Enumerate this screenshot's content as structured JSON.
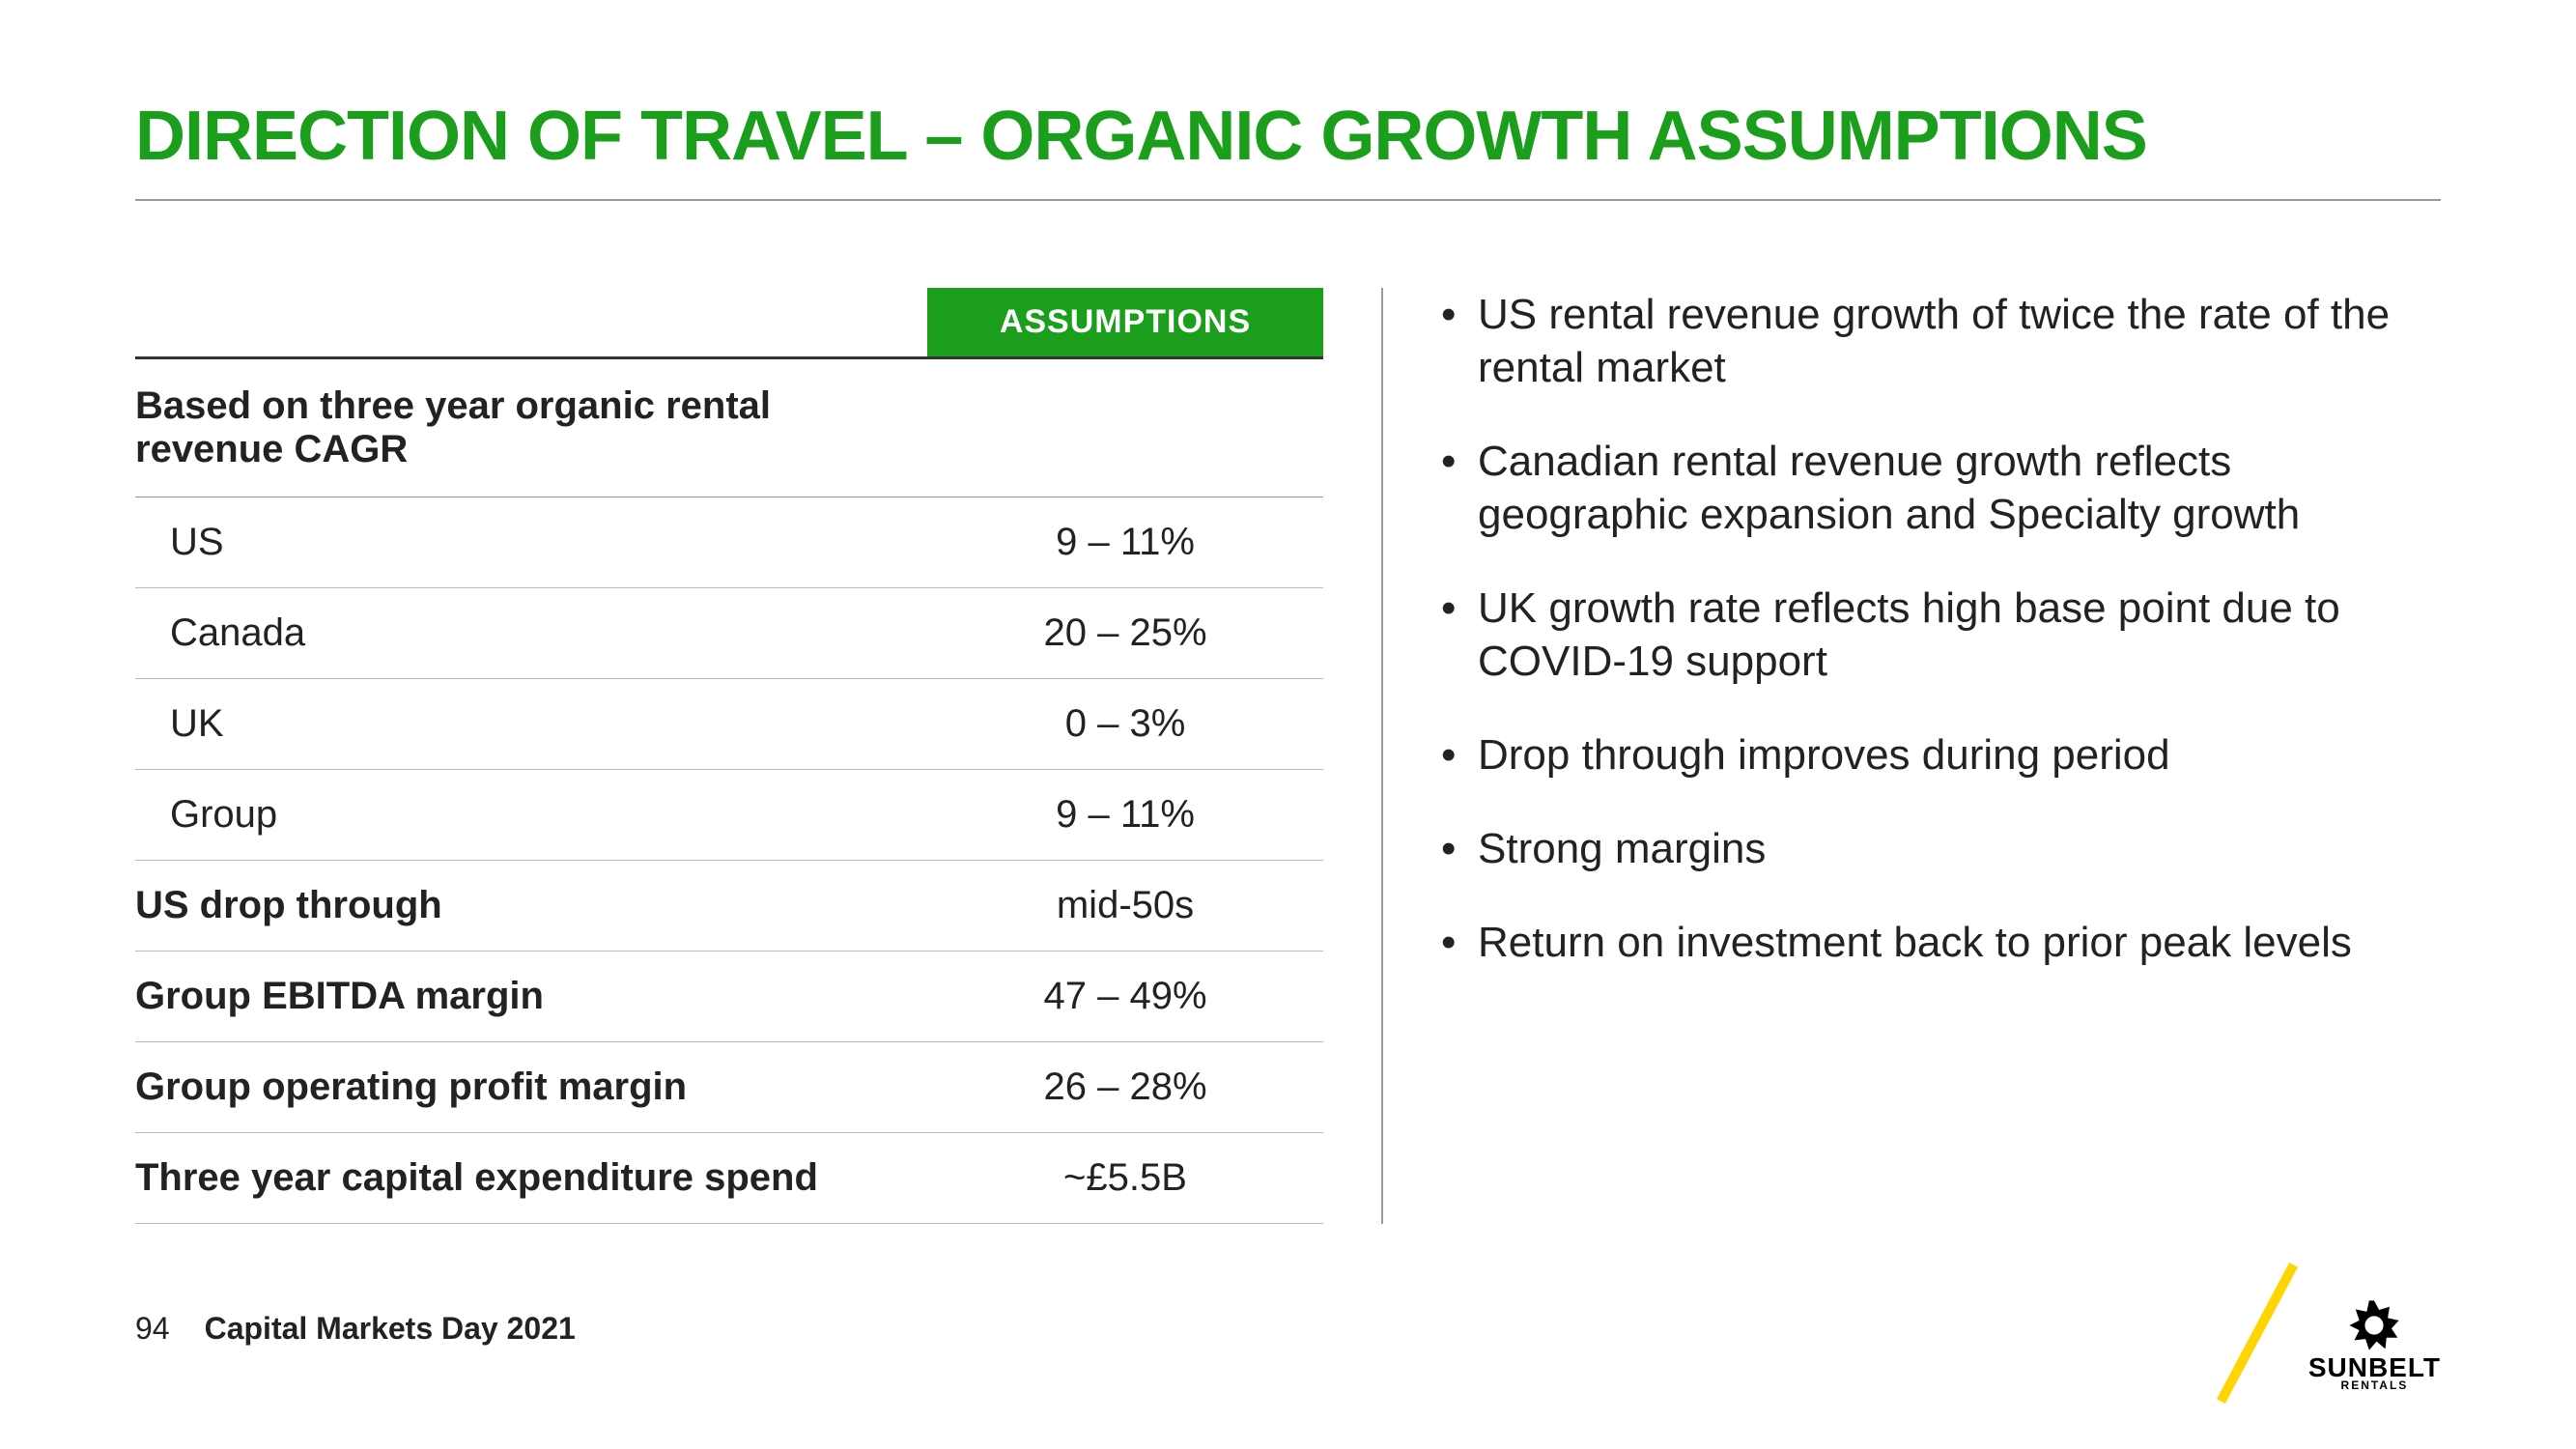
{
  "title": "DIRECTION OF TRAVEL – ORGANIC GROWTH ASSUMPTIONS",
  "colors": {
    "brand_green": "#1b9e1b",
    "accent_yellow": "#ffd400",
    "rule_gray": "#999999",
    "text": "#222222",
    "background": "#ffffff"
  },
  "table": {
    "header_badge": "ASSUMPTIONS",
    "section_header": "Based on three year organic rental revenue CAGR",
    "rows": [
      {
        "label": "US",
        "value": "9 – 11%",
        "indented": true,
        "bold": false
      },
      {
        "label": "Canada",
        "value": "20 – 25%",
        "indented": true,
        "bold": false
      },
      {
        "label": "UK",
        "value": "0 – 3%",
        "indented": true,
        "bold": false
      },
      {
        "label": "Group",
        "value": "9 – 11%",
        "indented": true,
        "bold": false
      },
      {
        "label": "US drop through",
        "value": "mid-50s",
        "indented": false,
        "bold": true
      },
      {
        "label": "Group EBITDA margin",
        "value": "47 – 49%",
        "indented": false,
        "bold": true
      },
      {
        "label": "Group operating profit margin",
        "value": "26 – 28%",
        "indented": false,
        "bold": true
      },
      {
        "label": "Three year capital expenditure spend",
        "value": "~£5.5B",
        "indented": false,
        "bold": true
      }
    ]
  },
  "bullets": [
    "US rental revenue growth of twice the rate of the rental market",
    "Canadian rental revenue growth reflects geographic expansion and Specialty growth",
    "UK growth rate reflects high base point due to COVID-19 support",
    "Drop through improves during period",
    "Strong margins",
    "Return on investment back to prior peak levels"
  ],
  "footer": {
    "page_number": "94",
    "label": "Capital Markets Day 2021",
    "logo_text": "SUNBELT",
    "logo_sub": "RENTALS"
  }
}
